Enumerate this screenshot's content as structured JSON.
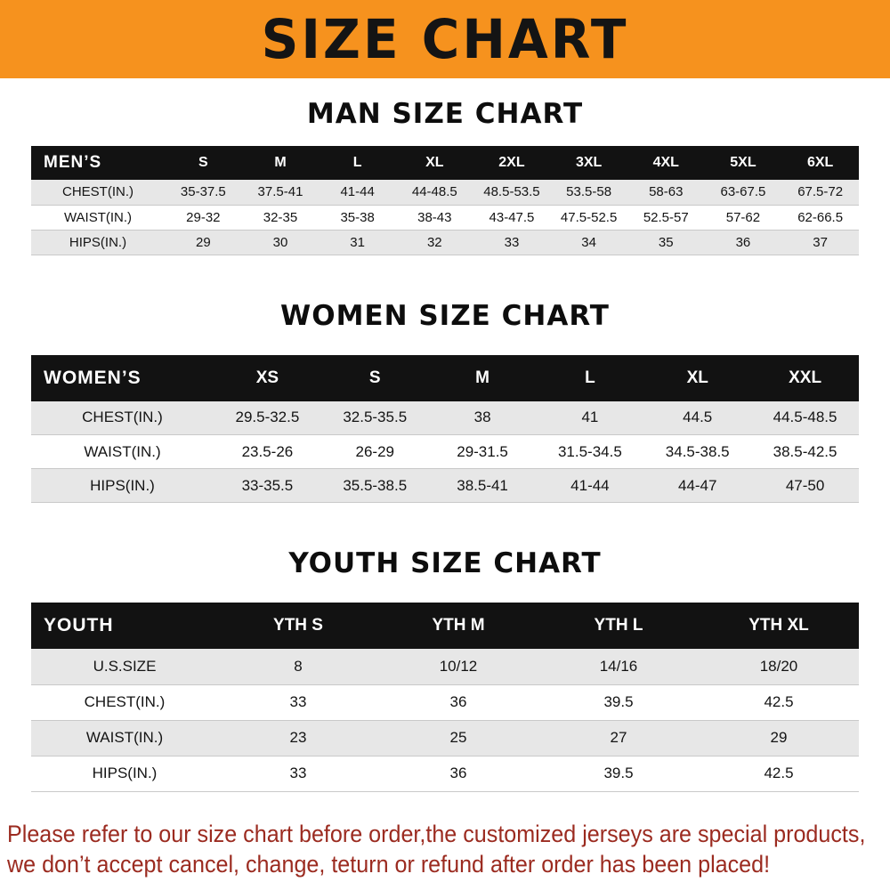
{
  "banner": {
    "title": "SIZE CHART"
  },
  "colors": {
    "banner_bg": "#F6921E",
    "table_header_bg": "#121212",
    "alt_row_bg": "#E7E7E7",
    "note_text": "#9B2B20"
  },
  "sections": [
    {
      "heading": "MAN SIZE CHART",
      "table": {
        "header_label": "MEN’S",
        "columns": [
          "S",
          "M",
          "L",
          "XL",
          "2XL",
          "3XL",
          "4XL",
          "5XL",
          "6XL"
        ],
        "rows": [
          {
            "label": "CHEST(IN.)",
            "values": [
              "35-37.5",
              "37.5-41",
              "41-44",
              "44-48.5",
              "48.5-53.5",
              "53.5-58",
              "58-63",
              "63-67.5",
              "67.5-72"
            ]
          },
          {
            "label": "WAIST(IN.)",
            "values": [
              "29-32",
              "32-35",
              "35-38",
              "38-43",
              "43-47.5",
              "47.5-52.5",
              "52.5-57",
              "57-62",
              "62-66.5"
            ]
          },
          {
            "label": "HIPS(IN.)",
            "values": [
              "29",
              "30",
              "31",
              "32",
              "33",
              "34",
              "35",
              "36",
              "37"
            ]
          }
        ]
      }
    },
    {
      "heading": "WOMEN SIZE CHART",
      "table": {
        "header_label": "WOMEN’S",
        "columns": [
          "XS",
          "S",
          "M",
          "L",
          "XL",
          "XXL"
        ],
        "rows": [
          {
            "label": "CHEST(IN.)",
            "values": [
              "29.5-32.5",
              "32.5-35.5",
              "38",
              "41",
              "44.5",
              "44.5-48.5"
            ]
          },
          {
            "label": "WAIST(IN.)",
            "values": [
              "23.5-26",
              "26-29",
              "29-31.5",
              "31.5-34.5",
              "34.5-38.5",
              "38.5-42.5"
            ]
          },
          {
            "label": "HIPS(IN.)",
            "values": [
              "33-35.5",
              "35.5-38.5",
              "38.5-41",
              "41-44",
              "44-47",
              "47-50"
            ]
          }
        ]
      }
    },
    {
      "heading": "YOUTH SIZE CHART",
      "table": {
        "header_label": "YOUTH",
        "columns": [
          "YTH S",
          "YTH M",
          "YTH L",
          "YTH XL"
        ],
        "rows": [
          {
            "label": "U.S.SIZE",
            "values": [
              "8",
              "10/12",
              "14/16",
              "18/20"
            ]
          },
          {
            "label": "CHEST(IN.)",
            "values": [
              "33",
              "36",
              "39.5",
              "42.5"
            ]
          },
          {
            "label": "WAIST(IN.)",
            "values": [
              "23",
              "25",
              "27",
              "29"
            ]
          },
          {
            "label": "HIPS(IN.)",
            "values": [
              "33",
              "36",
              "39.5",
              "42.5"
            ]
          }
        ]
      }
    }
  ],
  "footer": {
    "line1": "Please refer to our size chart before order,the customized jerseys are special products,",
    "line2": "we don’t accept cancel, change, teturn or refund after order has been placed!"
  }
}
